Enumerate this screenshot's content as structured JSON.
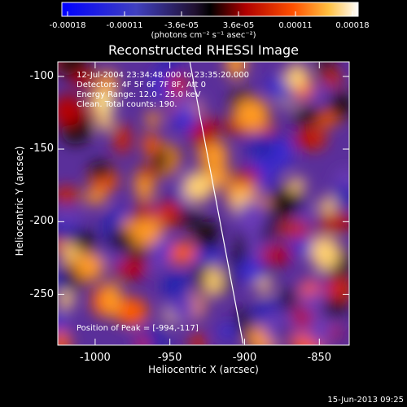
{
  "chart_data": {
    "type": "heatmap",
    "title": "Reconstructed RHESSI Image",
    "xlabel": "Heliocentric X (arcsec)",
    "ylabel": "Heliocentric Y (arcsec)",
    "xlim": [
      -1025,
      -830
    ],
    "ylim": [
      -285,
      -90
    ],
    "x_ticks": [
      -1000,
      -950,
      -900,
      -850
    ],
    "y_ticks": [
      -100,
      -150,
      -200,
      -250
    ],
    "colorbar": {
      "ticks": [
        "-0.00018",
        "-0.00011",
        "-3.6e-05",
        "3.6e-05",
        "0.00011",
        "0.00018"
      ],
      "range": [
        -0.00018,
        0.00018
      ],
      "unit_text": "(photons cm⁻² s⁻¹ asec⁻²)"
    },
    "annotations": [
      "12-Jul-2004 23:34:48.000 to 23:35:20.000",
      "Detectors: 4F 5F 6F 7F 8F, Att 0",
      "Energy Range: 12.0 - 25.0 keV",
      "Clean.  Total counts: 190."
    ],
    "peak_label": "Position of Peak = [-994,-117]",
    "peak_position": [
      -994,
      -117
    ],
    "limb_line": [
      [
        -937,
        -88
      ],
      [
        -901,
        -284
      ]
    ]
  },
  "footer": {
    "timestamp": "15-Jun-2013 09:25"
  },
  "colors": {
    "negative": "#1010ff",
    "zero": "#000000",
    "low_positive": "#cc0000",
    "mid_positive": "#ff8000",
    "high_positive": "#ffffb0"
  }
}
